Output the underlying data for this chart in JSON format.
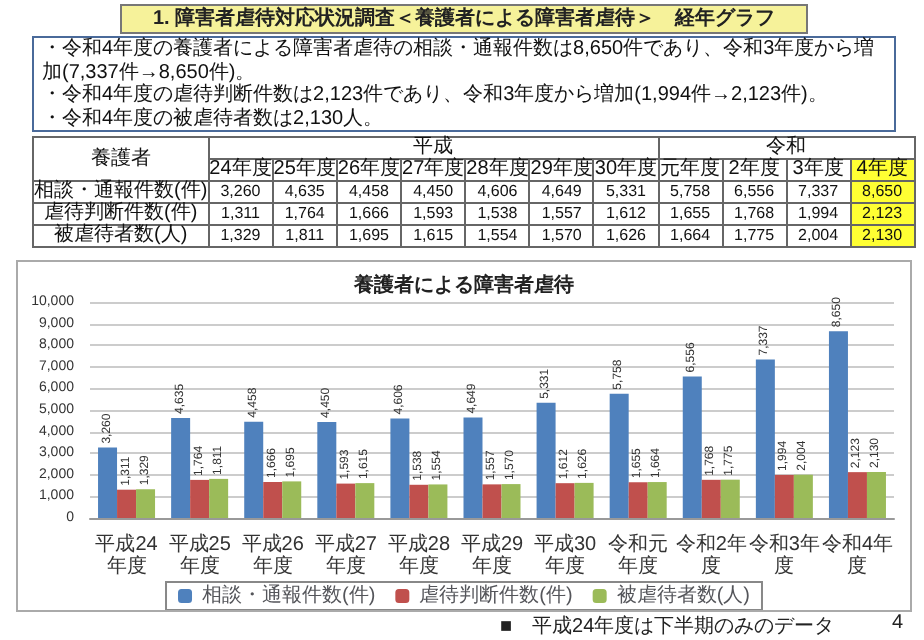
{
  "chart_data": {
    "type": "bar",
    "title": "養護者による障害者虐待",
    "categories": [
      "平成24年度",
      "平成25年度",
      "平成26年度",
      "平成27年度",
      "平成28年度",
      "平成29年度",
      "平成30年度",
      "令和元年度",
      "令和2年度",
      "令和3年度",
      "令和4年度"
    ],
    "series": [
      {
        "name": "相談・通報件数(件)",
        "color": "#4f81bd",
        "values": [
          3260,
          4635,
          4458,
          4450,
          4606,
          4649,
          5331,
          5758,
          6556,
          7337,
          8650
        ],
        "value_labels": [
          "3,260",
          "4,635",
          "4,458",
          "4,450",
          "4,606",
          "4,649",
          "5,331",
          "5,758",
          "6,556",
          "7,337",
          "8,650"
        ]
      },
      {
        "name": "虐待判断件数(件)",
        "color": "#c0504d",
        "values": [
          1311,
          1764,
          1666,
          1593,
          1538,
          1557,
          1612,
          1655,
          1768,
          1994,
          2123
        ],
        "value_labels": [
          "1,311",
          "1,764",
          "1,666",
          "1,593",
          "1,538",
          "1,557",
          "1,612",
          "1,655",
          "1,768",
          "1,994",
          "2,123"
        ]
      },
      {
        "name": "被虐待者数(人)",
        "color": "#9bbb59",
        "values": [
          1329,
          1811,
          1695,
          1615,
          1554,
          1570,
          1626,
          1664,
          1775,
          2004,
          2130
        ],
        "value_labels": [
          "1,329",
          "1,811",
          "1,695",
          "1,615",
          "1,554",
          "1,570",
          "1,626",
          "1,664",
          "1,775",
          "2,004",
          "2,130"
        ]
      }
    ],
    "ylim": [
      0,
      10000
    ],
    "yticks": [
      0,
      {
        "value": 1000,
        "label": "1,000"
      },
      {
        "value": 2000,
        "label": "2,000"
      },
      {
        "value": 3000,
        "label": "3,000"
      },
      {
        "value": 4000,
        "label": "4,000"
      },
      {
        "value": 5000,
        "label": "5,000"
      },
      {
        "value": 6000,
        "label": "6,000"
      },
      {
        "value": 7000,
        "label": "7,000"
      },
      {
        "value": 8000,
        "label": "8,000"
      },
      {
        "value": 9000,
        "label": "9,000"
      },
      {
        "value": 10000,
        "label": "10,000"
      }
    ],
    "grid": "y",
    "legend": "bottom",
    "annotations": [
      "1. 障害者虐待対応状況調査＜養護者による障害者虐待＞　経年グラフ",
      "・令和4年度の養護者による障害者虐待の相談・通報件数は8,650件であり、令和3年度から増加(7,337件→8,650件)。",
      "・令和4年度の虐待判断件数は2,123件であり、令和3年度から増加(1,994件→2,123件)。",
      "・令和4年度の被虐待者数は2,130人。",
      "養護者",
      "平成",
      "令和",
      "24年度",
      "25年度",
      "26年度",
      "27年度",
      "28年度",
      "29年度",
      "30年度",
      "元年度",
      "2年度",
      "3年度",
      "4年度",
      "■　平成24年度は下半期のみのデータ",
      "4"
    ]
  }
}
